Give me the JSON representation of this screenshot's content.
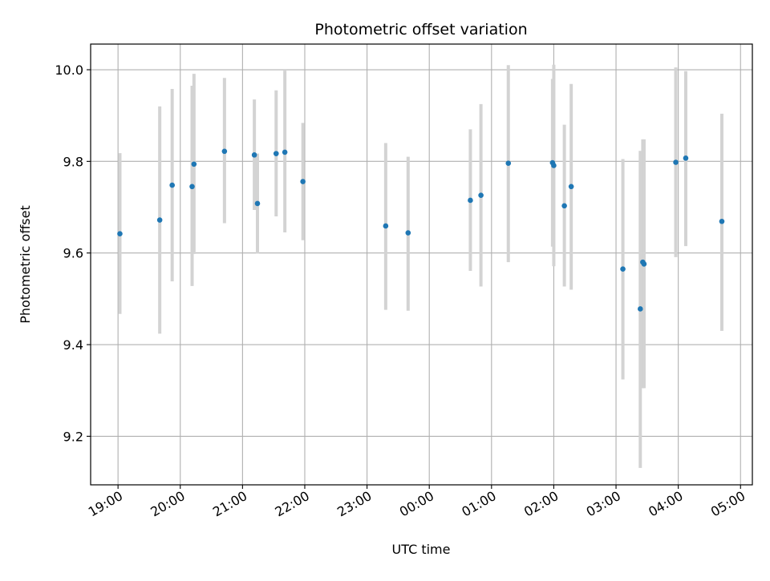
{
  "colors": {
    "point": "#1f77b4",
    "errorbar": "#d3d3d3",
    "grid": "#b0b0b0",
    "axes": "#000000"
  },
  "chart_data": {
    "type": "scatter",
    "title": "Photometric offset variation",
    "xlabel": "UTC time",
    "ylabel": "Photometric offset",
    "x_unit": "hours after 19:00 UTC",
    "xlim": [
      -0.44,
      10.19
    ],
    "ylim": [
      9.094,
      10.056
    ],
    "grid": true,
    "xticks": [
      {
        "value": 0,
        "label": "19:00"
      },
      {
        "value": 1,
        "label": "20:00"
      },
      {
        "value": 2,
        "label": "21:00"
      },
      {
        "value": 3,
        "label": "22:00"
      },
      {
        "value": 4,
        "label": "23:00"
      },
      {
        "value": 5,
        "label": "00:00"
      },
      {
        "value": 6,
        "label": "01:00"
      },
      {
        "value": 7,
        "label": "02:00"
      },
      {
        "value": 8,
        "label": "03:00"
      },
      {
        "value": 9,
        "label": "04:00"
      },
      {
        "value": 10,
        "label": "05:00"
      }
    ],
    "yticks": [
      {
        "value": 9.2,
        "label": "9.2"
      },
      {
        "value": 9.4,
        "label": "9.4"
      },
      {
        "value": 9.6,
        "label": "9.6"
      },
      {
        "value": 9.8,
        "label": "9.8"
      },
      {
        "value": 10.0,
        "label": "10.0"
      }
    ],
    "series": [
      {
        "marker": "dot",
        "points": [
          {
            "time": "19:02",
            "x": 0.03,
            "y": 9.642,
            "err_low": 9.467,
            "err_high": 9.818
          },
          {
            "time": "19:40",
            "x": 0.67,
            "y": 9.672,
            "err_low": 9.424,
            "err_high": 9.92
          },
          {
            "time": "19:53",
            "x": 0.87,
            "y": 9.748,
            "err_low": 9.538,
            "err_high": 9.958
          },
          {
            "time": "20:11",
            "x": 1.19,
            "y": 9.745,
            "err_low": 9.528,
            "err_high": 9.965
          },
          {
            "time": "20:13",
            "x": 1.22,
            "y": 9.794,
            "err_low": 9.598,
            "err_high": 9.991
          },
          {
            "time": "20:42",
            "x": 1.71,
            "y": 9.822,
            "err_low": 9.665,
            "err_high": 9.982
          },
          {
            "time": "21:11",
            "x": 2.19,
            "y": 9.814,
            "err_low": 9.694,
            "err_high": 9.935
          },
          {
            "time": "21:15",
            "x": 2.24,
            "y": 9.708,
            "err_low": 9.599,
            "err_high": 9.817
          },
          {
            "time": "21:32",
            "x": 2.54,
            "y": 9.817,
            "err_low": 9.68,
            "err_high": 9.955
          },
          {
            "time": "21:41",
            "x": 2.68,
            "y": 9.82,
            "err_low": 9.645,
            "err_high": 9.998
          },
          {
            "time": "21:59",
            "x": 2.97,
            "y": 9.756,
            "err_low": 9.628,
            "err_high": 9.884
          },
          {
            "time": "23:18",
            "x": 4.3,
            "y": 9.659,
            "err_low": 9.476,
            "err_high": 9.84
          },
          {
            "time": "23:40",
            "x": 4.66,
            "y": 9.644,
            "err_low": 9.474,
            "err_high": 9.81
          },
          {
            "time": "00:40",
            "x": 5.66,
            "y": 9.715,
            "err_low": 9.561,
            "err_high": 9.87
          },
          {
            "time": "00:50",
            "x": 5.83,
            "y": 9.726,
            "err_low": 9.527,
            "err_high": 9.925
          },
          {
            "time": "01:16",
            "x": 6.27,
            "y": 9.796,
            "err_low": 9.58,
            "err_high": 10.01
          },
          {
            "time": "01:59",
            "x": 6.98,
            "y": 9.797,
            "err_low": 9.614,
            "err_high": 9.98
          },
          {
            "time": "02:00",
            "x": 7.0,
            "y": 9.791,
            "err_low": 9.571,
            "err_high": 10.011
          },
          {
            "time": "02:10",
            "x": 7.17,
            "y": 9.703,
            "err_low": 9.527,
            "err_high": 9.88
          },
          {
            "time": "02:17",
            "x": 7.28,
            "y": 9.745,
            "err_low": 9.52,
            "err_high": 9.969
          },
          {
            "time": "03:06",
            "x": 8.11,
            "y": 9.565,
            "err_low": 9.324,
            "err_high": 9.805
          },
          {
            "time": "03:23",
            "x": 8.39,
            "y": 9.478,
            "err_low": 9.131,
            "err_high": 9.823
          },
          {
            "time": "03:26",
            "x": 8.43,
            "y": 9.58,
            "err_low": 9.305,
            "err_high": 9.848
          },
          {
            "time": "03:27",
            "x": 8.45,
            "y": 9.576,
            "err_low": 9.305,
            "err_high": 9.848
          },
          {
            "time": "03:58",
            "x": 8.96,
            "y": 9.798,
            "err_low": 9.591,
            "err_high": 10.005
          },
          {
            "time": "04:07",
            "x": 9.12,
            "y": 9.807,
            "err_low": 9.615,
            "err_high": 9.997
          },
          {
            "time": "04:42",
            "x": 9.7,
            "y": 9.669,
            "err_low": 9.43,
            "err_high": 9.904
          }
        ]
      }
    ]
  }
}
